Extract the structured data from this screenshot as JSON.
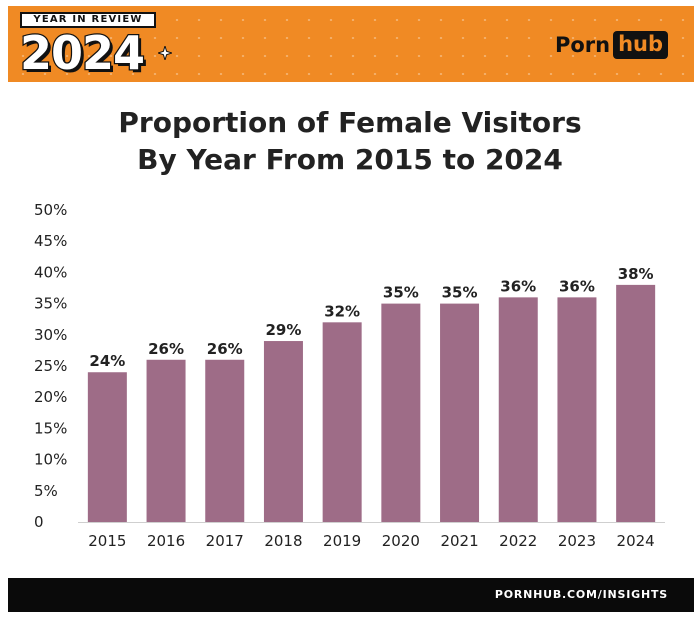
{
  "header": {
    "badge_label": "YEAR IN REVIEW",
    "badge_year": "2024",
    "logo_porn": "Porn",
    "logo_hub": "hub",
    "background_color": "#f08a24",
    "sparkle_icon": "sparkle-icon"
  },
  "title_lines": [
    "Proportion of Female Visitors",
    "By Year From 2015 to 2024"
  ],
  "chart_data": {
    "type": "bar",
    "categories": [
      "2015",
      "2016",
      "2017",
      "2018",
      "2019",
      "2020",
      "2021",
      "2022",
      "2023",
      "2024"
    ],
    "values": [
      24,
      26,
      26,
      29,
      32,
      35,
      35,
      36,
      36,
      38
    ],
    "data_labels": [
      "24%",
      "26%",
      "26%",
      "29%",
      "32%",
      "35%",
      "35%",
      "36%",
      "36%",
      "38%"
    ],
    "y_ticks": [
      0,
      5,
      10,
      15,
      20,
      25,
      30,
      35,
      40,
      45,
      50
    ],
    "y_tick_labels": [
      "0",
      "5%",
      "10%",
      "15%",
      "20%",
      "25%",
      "30%",
      "35%",
      "40%",
      "45%",
      "50%"
    ],
    "ylim": [
      0,
      50
    ],
    "grid": false,
    "legend": "none",
    "bar_color": "#9e6c87"
  },
  "footer": {
    "text": "PORNHUB.COM/INSIGHTS"
  }
}
